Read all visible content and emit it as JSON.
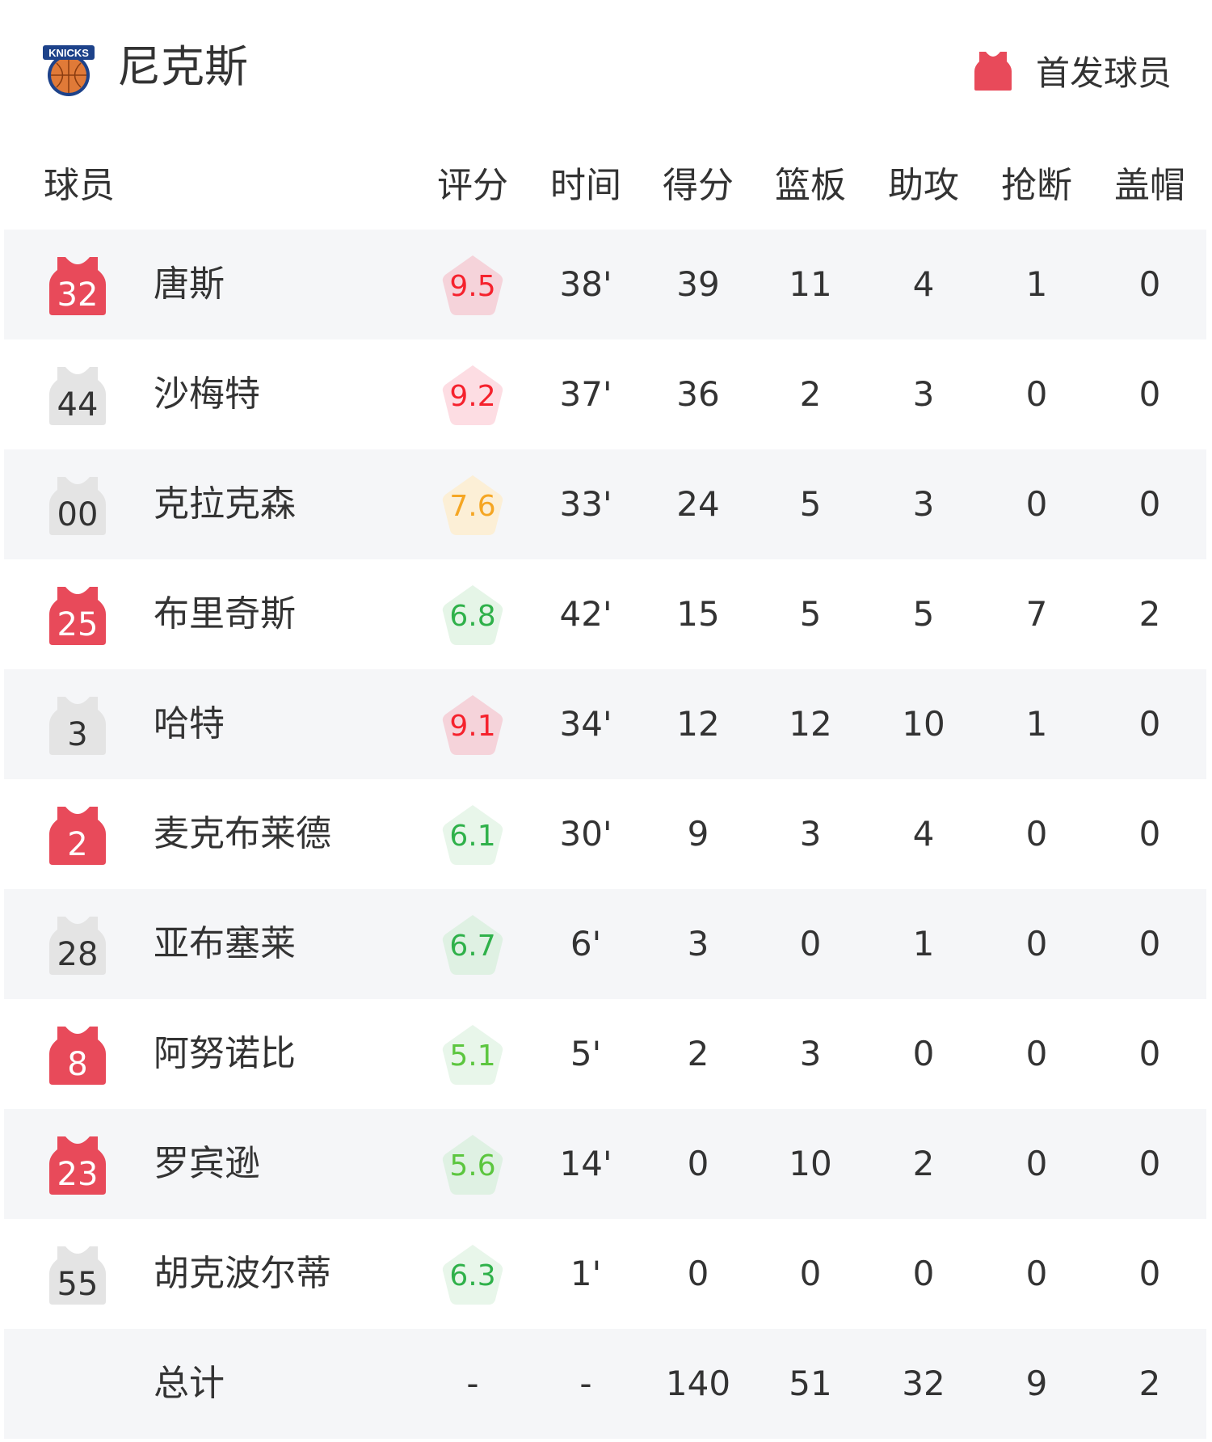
{
  "team": {
    "name": "尼克斯",
    "logo_text": "KNICKS"
  },
  "legend": {
    "label": "首发球员",
    "starter_color": "#e84a5a",
    "bench_color": "#e4e4e4"
  },
  "columns": [
    "球员",
    "评分",
    "时间",
    "得分",
    "篮板",
    "助攻",
    "抢断",
    "盖帽"
  ],
  "players": [
    {
      "number": "32",
      "name": "唐斯",
      "starter": true,
      "rating": "9.5",
      "rating_color": "#f5222d",
      "rating_bg": "#f5d3da",
      "time": "38'",
      "points": "39",
      "rebounds": "11",
      "assists": "4",
      "steals": "1",
      "blocks": "0"
    },
    {
      "number": "44",
      "name": "沙梅特",
      "starter": false,
      "rating": "9.2",
      "rating_color": "#f5222d",
      "rating_bg": "#fddde3",
      "time": "37'",
      "points": "36",
      "rebounds": "2",
      "assists": "3",
      "steals": "0",
      "blocks": "0"
    },
    {
      "number": "00",
      "name": "克拉克森",
      "starter": false,
      "rating": "7.6",
      "rating_color": "#f5a623",
      "rating_bg": "#fcefd6",
      "time": "33'",
      "points": "24",
      "rebounds": "5",
      "assists": "3",
      "steals": "0",
      "blocks": "0"
    },
    {
      "number": "25",
      "name": "布里奇斯",
      "starter": true,
      "rating": "6.8",
      "rating_color": "#2fb14a",
      "rating_bg": "#e5f5e7",
      "time": "42'",
      "points": "15",
      "rebounds": "5",
      "assists": "5",
      "steals": "7",
      "blocks": "2"
    },
    {
      "number": "3",
      "name": "哈特",
      "starter": false,
      "rating": "9.1",
      "rating_color": "#f5222d",
      "rating_bg": "#f5d3da",
      "time": "34'",
      "points": "12",
      "rebounds": "12",
      "assists": "10",
      "steals": "1",
      "blocks": "0"
    },
    {
      "number": "2",
      "name": "麦克布莱德",
      "starter": true,
      "rating": "6.1",
      "rating_color": "#2fb14a",
      "rating_bg": "#e8f6ea",
      "time": "30'",
      "points": "9",
      "rebounds": "3",
      "assists": "4",
      "steals": "0",
      "blocks": "0"
    },
    {
      "number": "28",
      "name": "亚布塞莱",
      "starter": false,
      "rating": "6.7",
      "rating_color": "#2fb14a",
      "rating_bg": "#dff1e3",
      "time": "6'",
      "points": "3",
      "rebounds": "0",
      "assists": "1",
      "steals": "0",
      "blocks": "0"
    },
    {
      "number": "8",
      "name": "阿努诺比",
      "starter": true,
      "rating": "5.1",
      "rating_color": "#5cc63f",
      "rating_bg": "#e8f6ea",
      "time": "5'",
      "points": "2",
      "rebounds": "3",
      "assists": "0",
      "steals": "0",
      "blocks": "0"
    },
    {
      "number": "23",
      "name": "罗宾逊",
      "starter": true,
      "rating": "5.6",
      "rating_color": "#5cc63f",
      "rating_bg": "#dff1e3",
      "time": "14'",
      "points": "0",
      "rebounds": "10",
      "assists": "2",
      "steals": "0",
      "blocks": "0"
    },
    {
      "number": "55",
      "name": "胡克波尔蒂",
      "starter": false,
      "rating": "6.3",
      "rating_color": "#2fb14a",
      "rating_bg": "#e8f6ea",
      "time": "1'",
      "points": "0",
      "rebounds": "0",
      "assists": "0",
      "steals": "0",
      "blocks": "0"
    }
  ],
  "totals": {
    "label": "总计",
    "rating": "-",
    "time": "-",
    "points": "140",
    "rebounds": "51",
    "assists": "32",
    "steals": "9",
    "blocks": "2"
  }
}
